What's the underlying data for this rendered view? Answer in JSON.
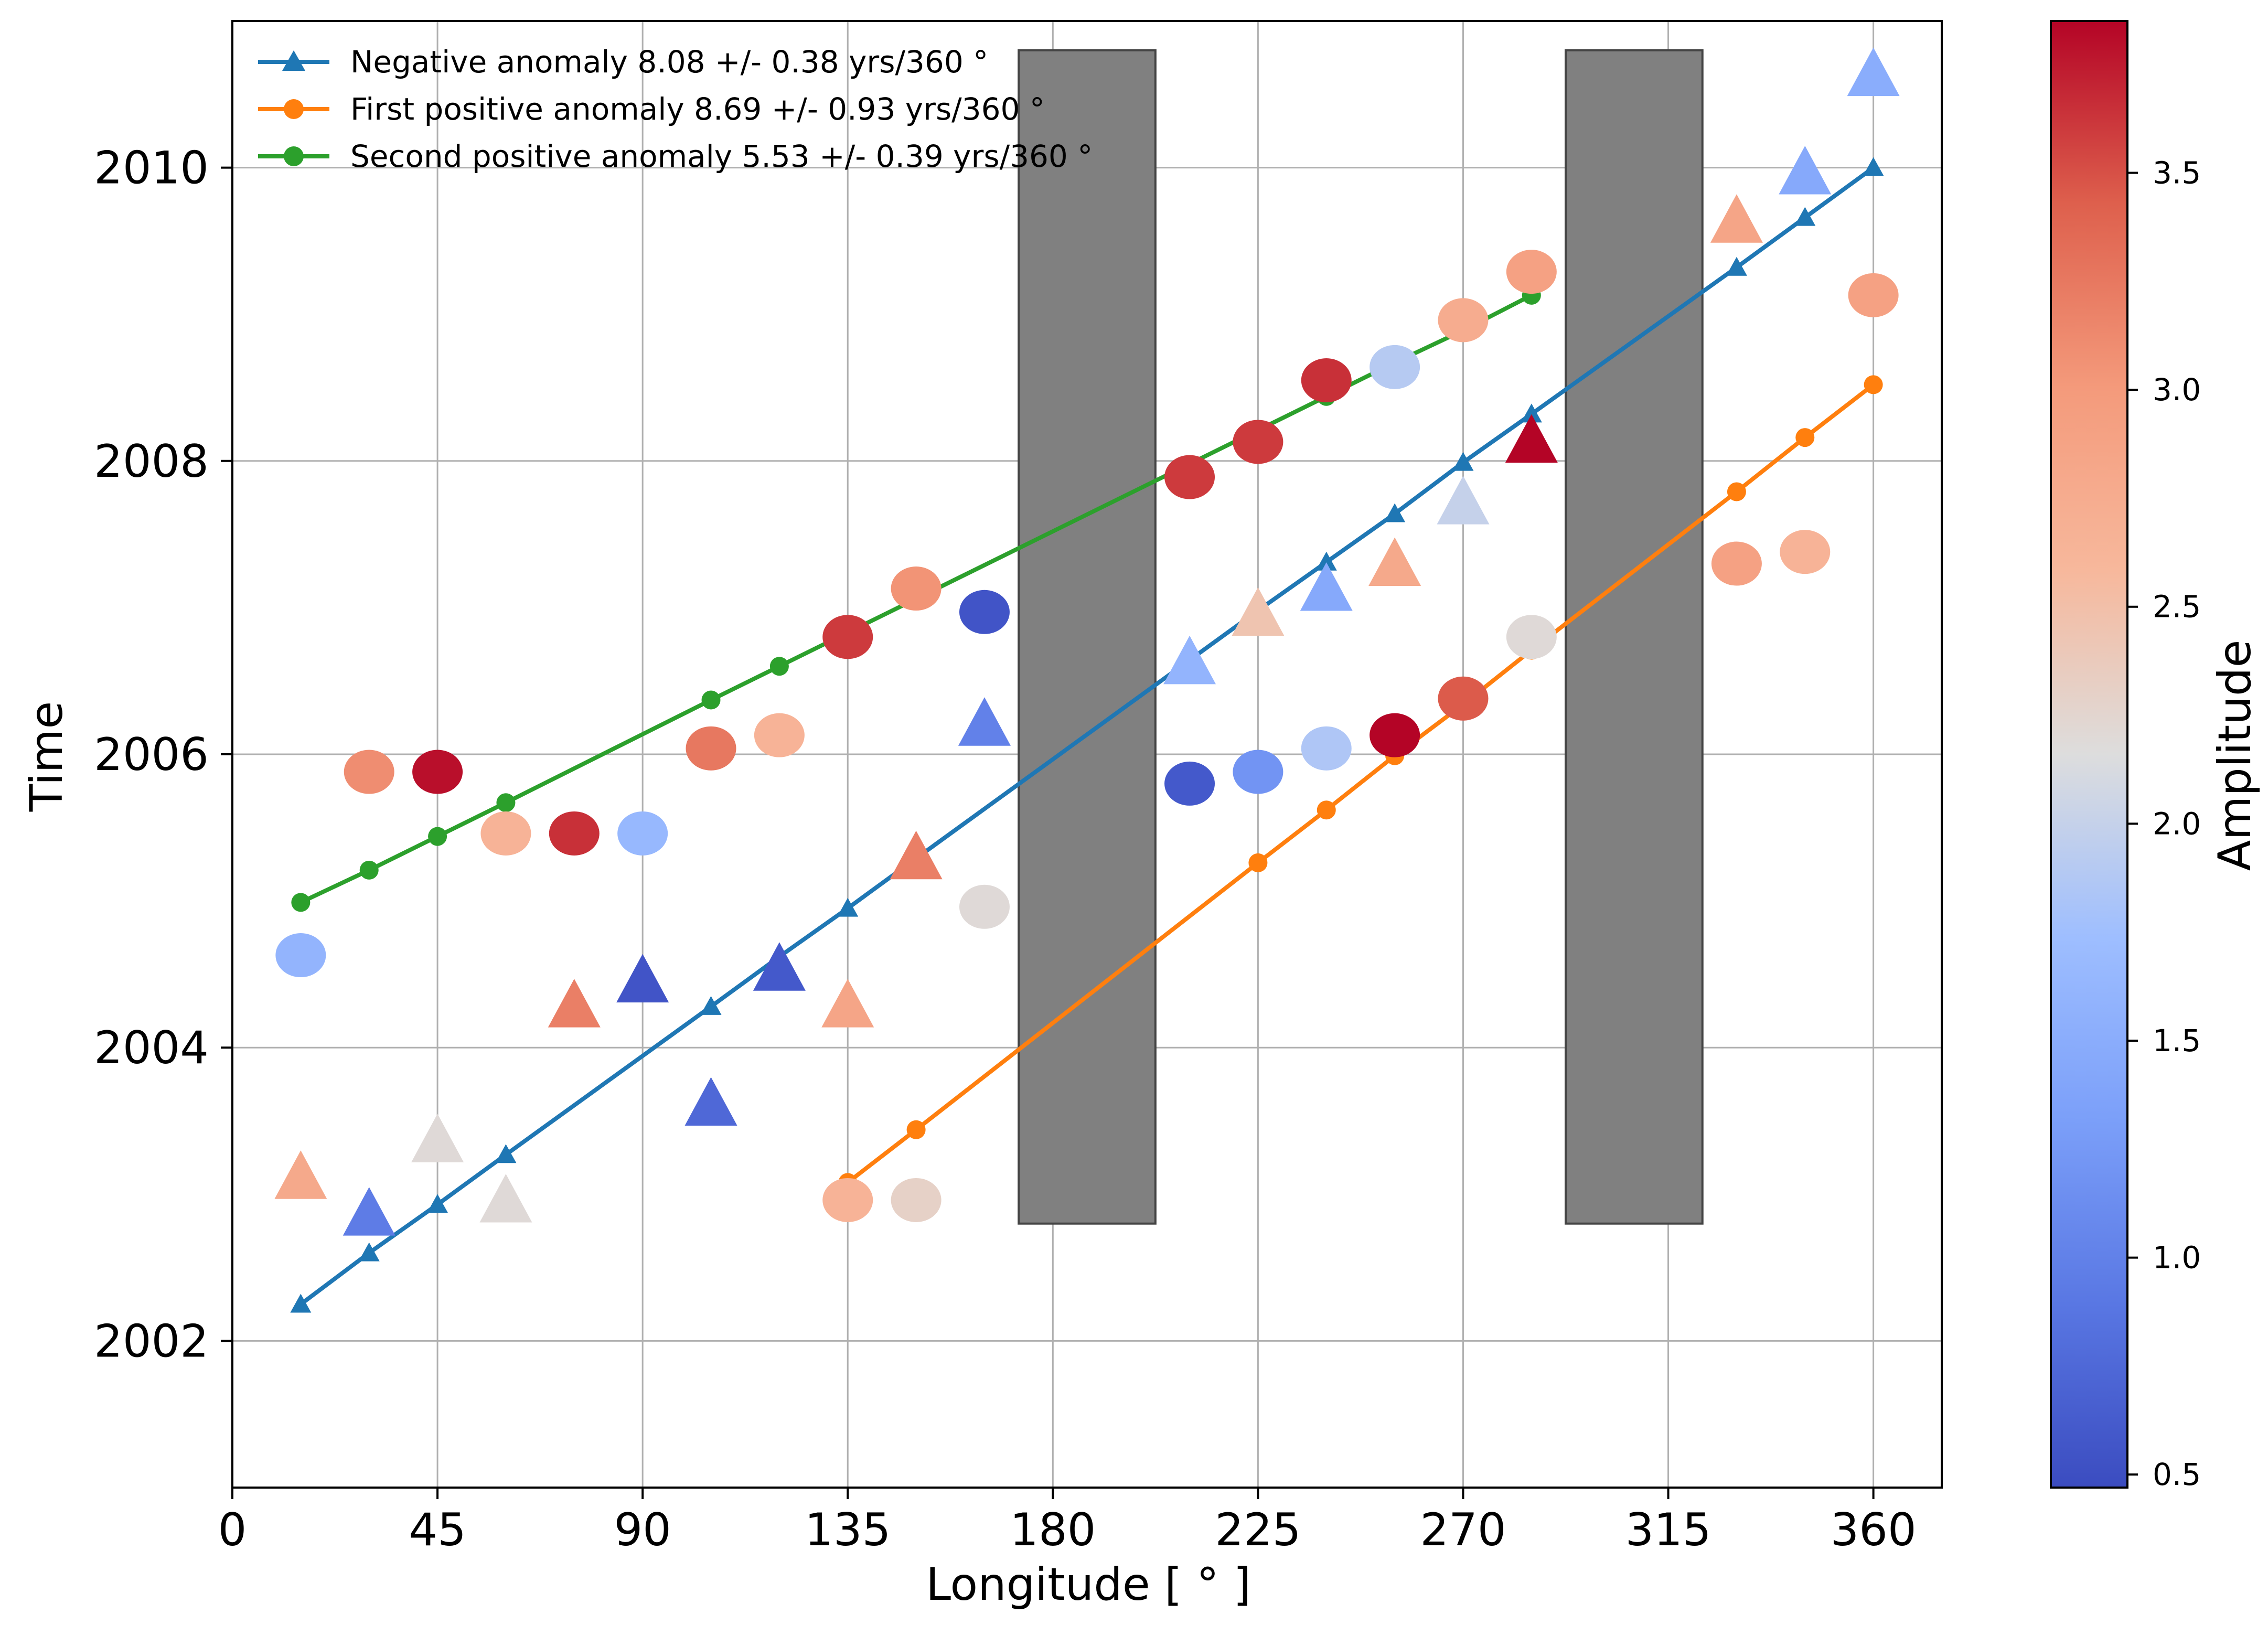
{
  "chart_data": {
    "type": "scatter",
    "xlabel": "Longitude [$^\\circ$]",
    "xlabel_display": "Longitude [ ° ]",
    "ylabel": "Time",
    "xlim": [
      0,
      375
    ],
    "ylim": [
      2001,
      2011
    ],
    "xticks": [
      0,
      45,
      90,
      135,
      180,
      225,
      270,
      315,
      360
    ],
    "yticks": [
      2002,
      2004,
      2006,
      2008,
      2010
    ],
    "grid": true,
    "legend_position": "top-left",
    "shaded_regions": [
      {
        "x": [
          172.5,
          202.5
        ],
        "y": [
          2002.8,
          2010.8
        ],
        "color": "#808080"
      },
      {
        "x": [
          292.5,
          322.5
        ],
        "y": [
          2002.8,
          2010.8
        ],
        "color": "#808080"
      }
    ],
    "colorbar": {
      "label": "Amplitude",
      "min": 0.47,
      "max": 3.85,
      "ticks": [
        "0.5",
        "1.0",
        "1.5",
        "2.0",
        "2.5",
        "3.0",
        "3.5"
      ],
      "tick_values": [
        0.5,
        1.0,
        1.5,
        2.0,
        2.5,
        3.0,
        3.5
      ],
      "colormap": "coolwarm"
    },
    "series": [
      {
        "name": "Negative anomaly 8.08 +/- 0.38 yrs/360",
        "legend_label": "Negative anomaly 8.08 +/- 0.38 yrs/360 °",
        "color": "#1f77b4",
        "marker": "triangle",
        "x": [
          15,
          30,
          45,
          60,
          105,
          120,
          135,
          150,
          225,
          240,
          255,
          270,
          285,
          330,
          345,
          360
        ],
        "y": [
          2002.25,
          2002.6,
          2002.93,
          2003.27,
          2004.28,
          2004.62,
          2004.95,
          2005.29,
          2006.98,
          2007.31,
          2007.64,
          2007.99,
          2008.32,
          2009.32,
          2009.66,
          2010.0
        ]
      },
      {
        "name": "First positive anomaly 8.69 +/- 0.93 yrs/360",
        "legend_label": "First positive anomaly 8.69 +/- 0.93 yrs/360 °",
        "color": "#ff7f0e",
        "marker": "circle",
        "x": [
          135,
          150,
          225,
          240,
          255,
          270,
          285,
          330,
          345,
          360
        ],
        "y": [
          2003.08,
          2003.44,
          2005.26,
          2005.62,
          2005.99,
          2006.34,
          2006.71,
          2007.79,
          2008.16,
          2008.52
        ]
      },
      {
        "name": "Second positive anomaly 5.53 +/- 0.39 yrs/360",
        "legend_label": "Second positive anomaly 5.53 +/- 0.39 yrs/360 °",
        "color": "#2ca02c",
        "marker": "circle",
        "x": [
          15,
          30,
          45,
          60,
          105,
          120,
          135,
          150,
          225,
          240,
          255,
          270,
          285
        ],
        "y": [
          2004.99,
          2005.21,
          2005.44,
          2005.67,
          2006.37,
          2006.6,
          2006.83,
          2007.06,
          2008.21,
          2008.44,
          2008.67,
          2008.89,
          2009.13
        ]
      }
    ],
    "scatter_points": [
      {
        "marker": "circle",
        "x": 15,
        "y": 2004.63,
        "amp": 1.6
      },
      {
        "marker": "circle",
        "x": 30,
        "y": 2005.88,
        "amp": 3.1
      },
      {
        "marker": "circle",
        "x": 45,
        "y": 2005.88,
        "amp": 3.8
      },
      {
        "marker": "circle",
        "x": 60,
        "y": 2005.46,
        "amp": 2.65
      },
      {
        "marker": "circle",
        "x": 75,
        "y": 2005.46,
        "amp": 3.65
      },
      {
        "marker": "circle",
        "x": 90,
        "y": 2005.46,
        "amp": 1.65
      },
      {
        "marker": "circle",
        "x": 105,
        "y": 2006.04,
        "amp": 3.25
      },
      {
        "marker": "circle",
        "x": 120,
        "y": 2006.13,
        "amp": 2.65
      },
      {
        "marker": "circle",
        "x": 135,
        "y": 2006.8,
        "amp": 3.6
      },
      {
        "marker": "circle",
        "x": 150,
        "y": 2007.13,
        "amp": 3.05
      },
      {
        "marker": "circle",
        "x": 165,
        "y": 2006.97,
        "amp": 0.55
      },
      {
        "marker": "circle",
        "x": 135,
        "y": 2002.96,
        "amp": 2.65
      },
      {
        "marker": "circle",
        "x": 150,
        "y": 2002.96,
        "amp": 2.3
      },
      {
        "marker": "circle",
        "x": 165,
        "y": 2004.96,
        "amp": 2.2
      },
      {
        "marker": "circle",
        "x": 210,
        "y": 2007.89,
        "amp": 3.6
      },
      {
        "marker": "circle",
        "x": 210,
        "y": 2005.8,
        "amp": 0.6
      },
      {
        "marker": "circle",
        "x": 225,
        "y": 2008.13,
        "amp": 3.6
      },
      {
        "marker": "circle",
        "x": 225,
        "y": 2005.88,
        "amp": 1.2
      },
      {
        "marker": "circle",
        "x": 240,
        "y": 2008.55,
        "amp": 3.65
      },
      {
        "marker": "circle",
        "x": 240,
        "y": 2006.04,
        "amp": 1.85
      },
      {
        "marker": "circle",
        "x": 255,
        "y": 2008.64,
        "amp": 1.9
      },
      {
        "marker": "circle",
        "x": 255,
        "y": 2006.13,
        "amp": 3.85
      },
      {
        "marker": "circle",
        "x": 270,
        "y": 2008.96,
        "amp": 2.75
      },
      {
        "marker": "circle",
        "x": 270,
        "y": 2006.38,
        "amp": 3.45
      },
      {
        "marker": "circle",
        "x": 285,
        "y": 2009.29,
        "amp": 2.9
      },
      {
        "marker": "circle",
        "x": 285,
        "y": 2006.8,
        "amp": 2.2
      },
      {
        "marker": "circle",
        "x": 330,
        "y": 2007.3,
        "amp": 2.9
      },
      {
        "marker": "circle",
        "x": 345,
        "y": 2007.38,
        "amp": 2.65
      },
      {
        "marker": "circle",
        "x": 360,
        "y": 2009.13,
        "amp": 2.9
      },
      {
        "marker": "triangle",
        "x": 15,
        "y": 2003.12,
        "amp": 2.8
      },
      {
        "marker": "triangle",
        "x": 30,
        "y": 2002.87,
        "amp": 0.95
      },
      {
        "marker": "triangle",
        "x": 45,
        "y": 2003.37,
        "amp": 2.2
      },
      {
        "marker": "triangle",
        "x": 60,
        "y": 2002.96,
        "amp": 2.2
      },
      {
        "marker": "triangle",
        "x": 75,
        "y": 2004.29,
        "amp": 3.2
      },
      {
        "marker": "triangle",
        "x": 90,
        "y": 2004.46,
        "amp": 0.55
      },
      {
        "marker": "triangle",
        "x": 105,
        "y": 2003.62,
        "amp": 0.75
      },
      {
        "marker": "triangle",
        "x": 120,
        "y": 2004.54,
        "amp": 0.6
      },
      {
        "marker": "triangle",
        "x": 135,
        "y": 2004.29,
        "amp": 2.85
      },
      {
        "marker": "triangle",
        "x": 150,
        "y": 2005.3,
        "amp": 3.2
      },
      {
        "marker": "triangle",
        "x": 165,
        "y": 2006.21,
        "amp": 1.0
      },
      {
        "marker": "triangle",
        "x": 210,
        "y": 2006.63,
        "amp": 1.6
      },
      {
        "marker": "triangle",
        "x": 225,
        "y": 2006.96,
        "amp": 2.45
      },
      {
        "marker": "triangle",
        "x": 240,
        "y": 2007.13,
        "amp": 1.45
      },
      {
        "marker": "triangle",
        "x": 255,
        "y": 2007.3,
        "amp": 2.8
      },
      {
        "marker": "triangle",
        "x": 270,
        "y": 2007.72,
        "amp": 2.0
      },
      {
        "marker": "triangle",
        "x": 285,
        "y": 2008.14,
        "amp": 3.85
      },
      {
        "marker": "triangle",
        "x": 330,
        "y": 2009.64,
        "amp": 2.85
      },
      {
        "marker": "triangle",
        "x": 345,
        "y": 2009.97,
        "amp": 1.45
      },
      {
        "marker": "triangle",
        "x": 360,
        "y": 2010.64,
        "amp": 1.5
      }
    ]
  }
}
